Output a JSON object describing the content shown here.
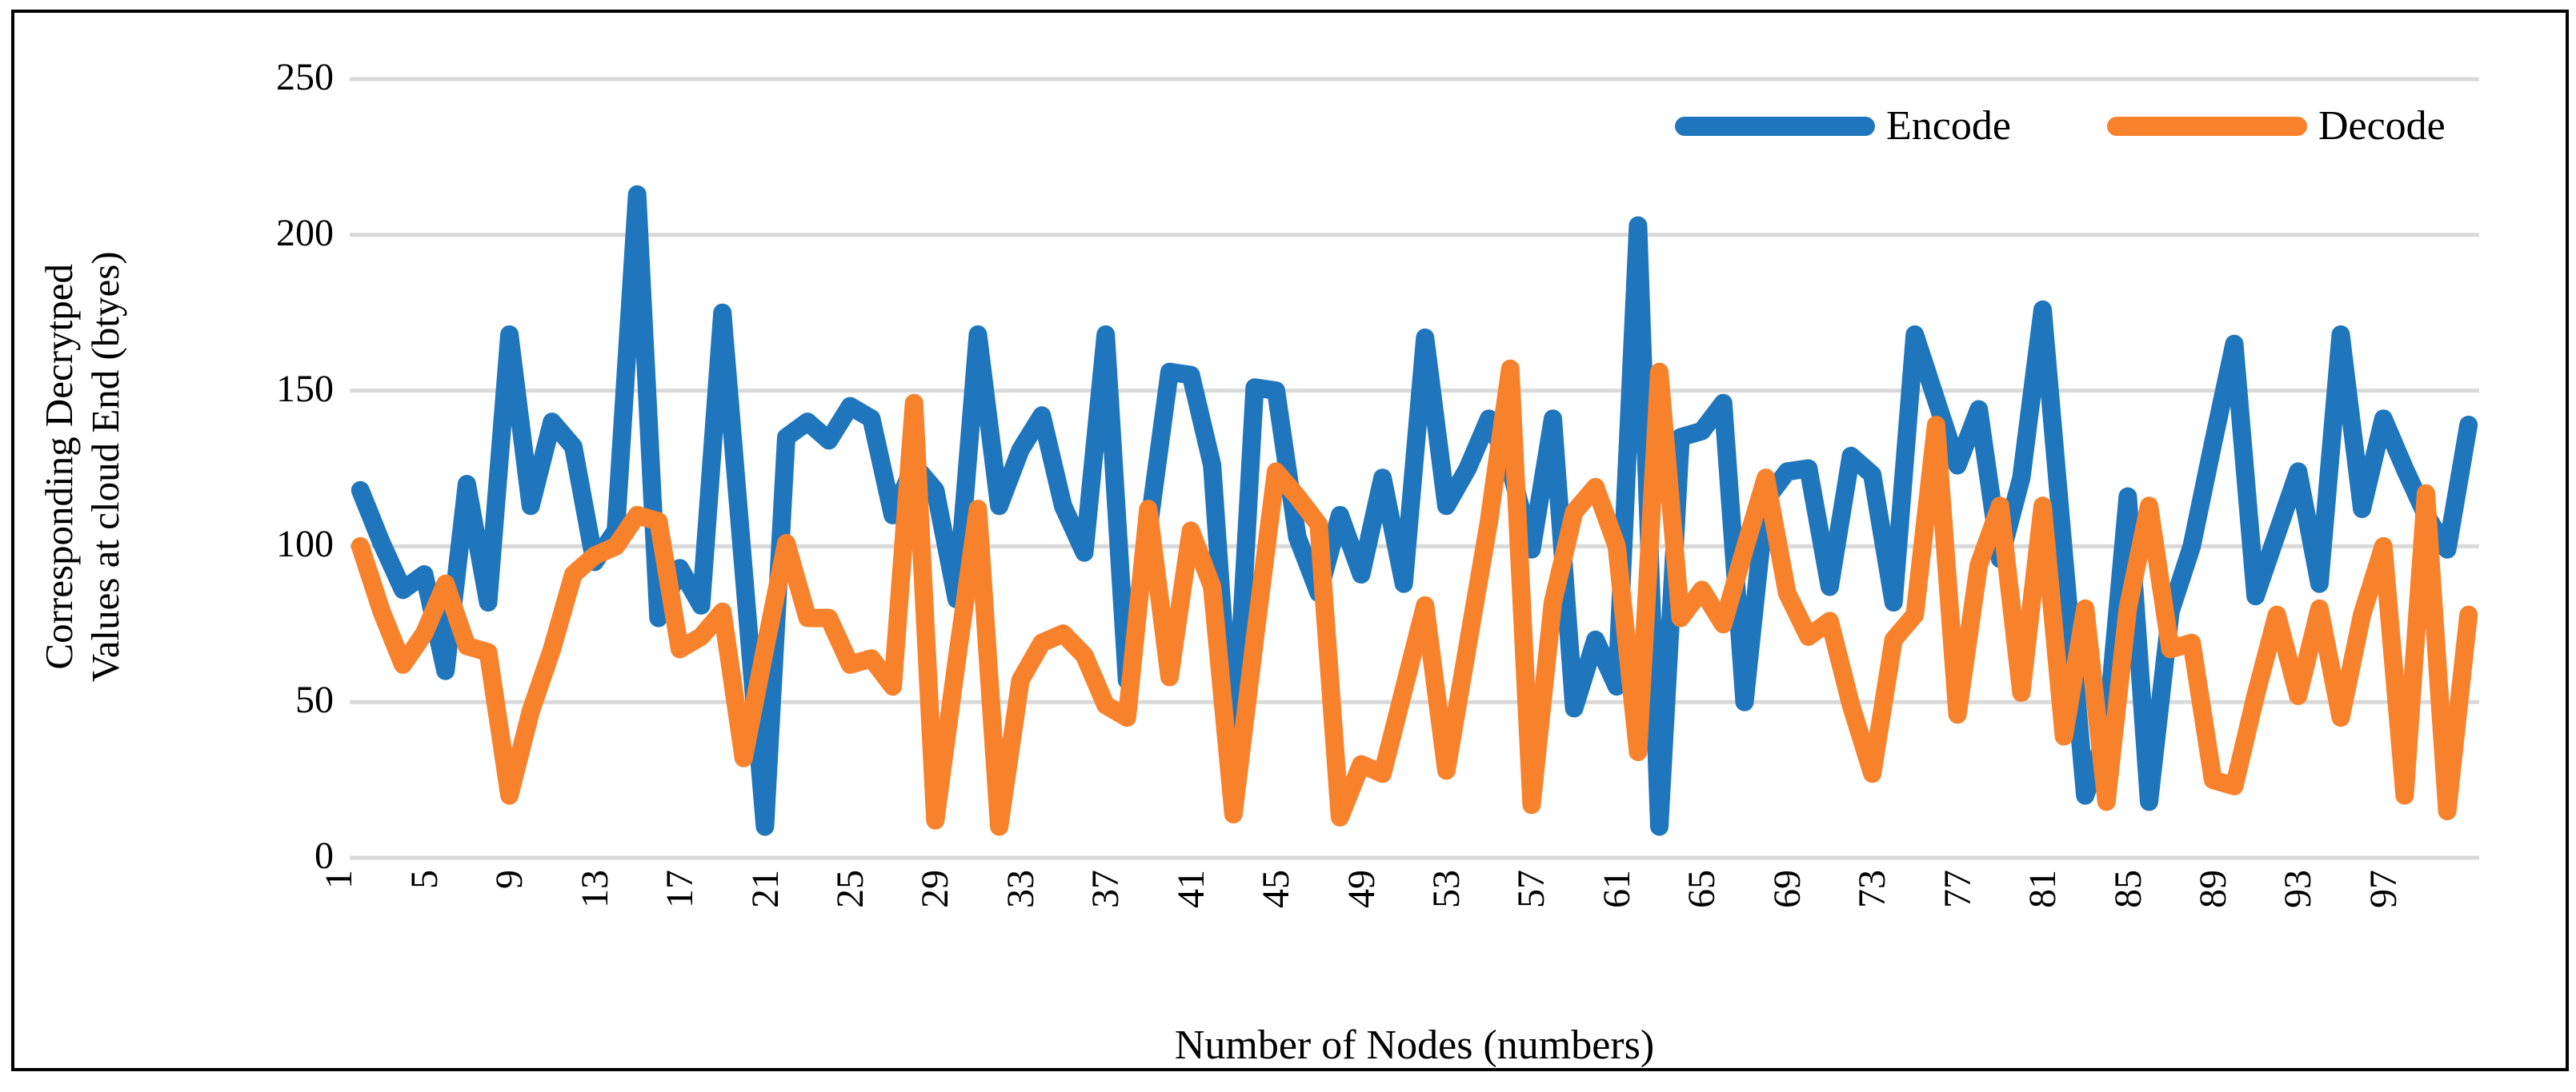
{
  "figure": {
    "background": "#FFFFFF",
    "border_color": "#000000"
  },
  "legend": {
    "items": [
      {
        "label": "Encode",
        "color": "#1F76BC"
      },
      {
        "label": "Decode",
        "color": "#F8812C"
      }
    ]
  },
  "chart_data": {
    "type": "line",
    "title": "",
    "xlabel": "Number of Nodes (numbers)",
    "ylabel_lines": [
      "Corresponding Decrytped",
      "Values at cloud End (btyes)"
    ],
    "ylim": [
      0,
      250
    ],
    "yticks": [
      0,
      50,
      100,
      150,
      200,
      250
    ],
    "x_ticks": [
      "1",
      "5",
      "9",
      "13",
      "17",
      "21",
      "25",
      "29",
      "33",
      "37",
      "41",
      "45",
      "49",
      "53",
      "57",
      "61",
      "65",
      "69",
      "73",
      "77",
      "81",
      "85",
      "89",
      "93",
      "97"
    ],
    "x_tick_start": 1,
    "x_tick_interval": 4,
    "n_points": 100,
    "grid": true,
    "gridline_color": "#D9D9D9",
    "legend_position": "top-right",
    "series": [
      {
        "name": "Encode",
        "color": "#1F76BC",
        "values": [
          118,
          101,
          86,
          91,
          60,
          120,
          82,
          168,
          113,
          140,
          132,
          95,
          105,
          213,
          77,
          93,
          81,
          175,
          92,
          10,
          135,
          140,
          134,
          145,
          141,
          110,
          126,
          118,
          83,
          168,
          113,
          131,
          142,
          113,
          98,
          168,
          57,
          105,
          156,
          155,
          126,
          28,
          151,
          150,
          103,
          85,
          110,
          91,
          122,
          88,
          167,
          113,
          125,
          141,
          125,
          99,
          141,
          48,
          70,
          55,
          203,
          10,
          135,
          137,
          146,
          50,
          115,
          124,
          125,
          87,
          129,
          123,
          82,
          168,
          147,
          126,
          144,
          96,
          122,
          176,
          97,
          20,
          40,
          116,
          18,
          79,
          100,
          133,
          165,
          84,
          104,
          124,
          88,
          168,
          112,
          141,
          125,
          110,
          99,
          139
        ]
      },
      {
        "name": "Decode",
        "color": "#F8812C",
        "values": [
          100,
          79,
          62,
          72,
          88,
          68,
          66,
          20,
          47,
          67,
          91,
          97,
          100,
          110,
          108,
          67,
          71,
          79,
          32,
          67,
          101,
          77,
          77,
          62,
          64,
          55,
          146,
          12,
          63,
          112,
          10,
          57,
          69,
          72,
          65,
          49,
          45,
          112,
          58,
          105,
          87,
          14,
          70,
          124,
          116,
          107,
          13,
          30,
          27,
          54,
          81,
          28,
          68,
          108,
          157,
          17,
          82,
          111,
          119,
          100,
          34,
          156,
          77,
          86,
          75,
          99,
          122,
          85,
          71,
          76,
          49,
          27,
          70,
          78,
          139,
          46,
          94,
          113,
          53,
          113,
          39,
          80,
          18,
          80,
          113,
          67,
          69,
          25,
          23,
          52,
          78,
          52,
          80,
          45,
          78,
          100,
          20,
          117,
          15,
          78
        ]
      }
    ]
  }
}
